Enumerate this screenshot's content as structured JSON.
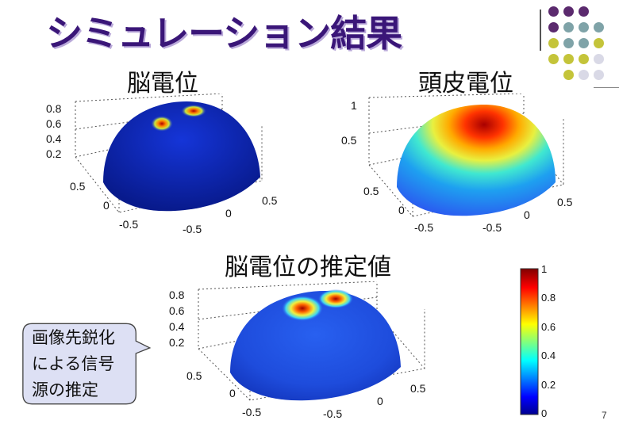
{
  "slide": {
    "title": "シミュレーション結果",
    "page_number": "7"
  },
  "plots": {
    "brain": {
      "label": "脳電位",
      "ticks_z": [
        "0.8",
        "0.6",
        "0.4",
        "0.2"
      ],
      "ticks_x": [
        "0.5",
        "0",
        "-0.5"
      ],
      "ticks_y": [
        "0.5",
        "0",
        "-0.5"
      ]
    },
    "scalp": {
      "label": "頭皮電位",
      "ticks_z": [
        "1",
        "0.5"
      ],
      "ticks_x": [
        "0.5",
        "0",
        "-0.5"
      ],
      "ticks_y": [
        "0.5",
        "0",
        "-0.5"
      ]
    },
    "estimate": {
      "label": "脳電位の推定値",
      "ticks_z": [
        "0.8",
        "0.6",
        "0.4",
        "0.2"
      ],
      "ticks_x": [
        "0.5",
        "0",
        "-0.5"
      ],
      "ticks_y": [
        "0.5",
        "0",
        "-0.5"
      ]
    }
  },
  "colorbar": {
    "ticks": [
      "1",
      "0.8",
      "0.6",
      "0.4",
      "0.2",
      "0"
    ]
  },
  "callout": {
    "lines": [
      "画像先鋭化",
      "による信号",
      "源の推定"
    ]
  },
  "colors": {
    "title": "#3a1678",
    "dot_purple": "#5b2a6e",
    "dot_teal": "#7fa3a8",
    "dot_olive": "#c4c43a",
    "dot_light": "#d9d9e6"
  }
}
